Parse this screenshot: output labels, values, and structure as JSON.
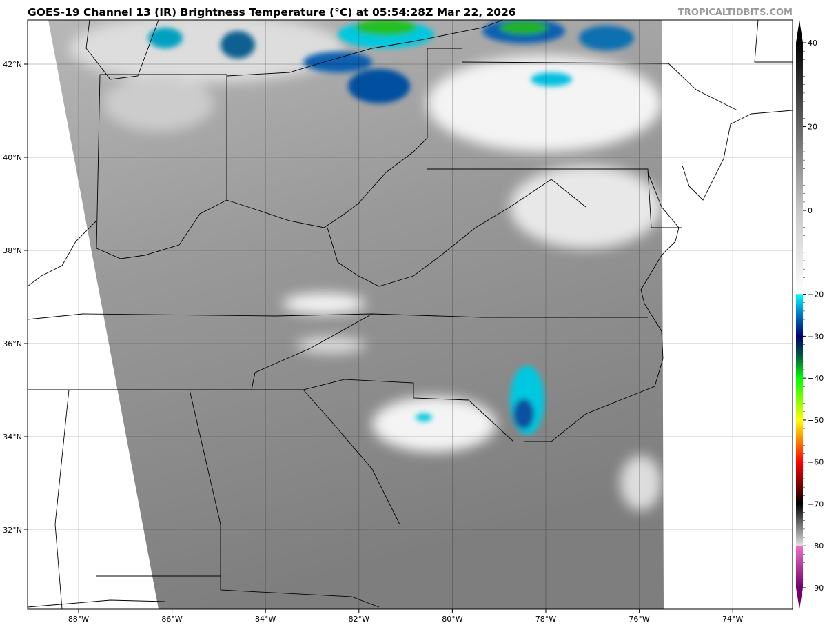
{
  "title": "GOES-19 Channel 13 (IR) Brightness Temperature (°C) at 05:54:28Z Mar 22, 2026",
  "watermark": "TROPICALTIDBITS.COM",
  "map": {
    "lon_labels": [
      "88°W",
      "86°W",
      "84°W",
      "82°W",
      "80°W",
      "78°W",
      "76°W",
      "74°W"
    ],
    "lon_values": [
      -88,
      -86,
      -84,
      -82,
      -80,
      -78,
      -76,
      -74
    ],
    "lat_labels": [
      "42°N",
      "40°N",
      "38°N",
      "36°N",
      "34°N",
      "32°N"
    ],
    "lat_values": [
      42,
      40,
      38,
      36,
      34,
      32
    ],
    "grid": true
  },
  "colorbar": {
    "range": [
      -90,
      40
    ],
    "tick_labels": [
      "40",
      "20",
      "0",
      "−20",
      "−30",
      "−40",
      "−50",
      "−60",
      "−70",
      "−80",
      "−90"
    ],
    "tick_values": [
      40,
      20,
      0,
      -20,
      -30,
      -40,
      -50,
      -60,
      -70,
      -80,
      -90
    ],
    "stops": [
      {
        "v": 40,
        "c": "#000000"
      },
      {
        "v": 0,
        "c": "#c8c8c8"
      },
      {
        "v": -19.9,
        "c": "#ffffff"
      },
      {
        "v": -20,
        "c": "#00ffff"
      },
      {
        "v": -25,
        "c": "#0070c0"
      },
      {
        "v": -30,
        "c": "#000070"
      },
      {
        "v": -35,
        "c": "#006040"
      },
      {
        "v": -40,
        "c": "#00ff00"
      },
      {
        "v": -50,
        "c": "#ffff00"
      },
      {
        "v": -55,
        "c": "#ff8000"
      },
      {
        "v": -60,
        "c": "#ff0000"
      },
      {
        "v": -66,
        "c": "#700000"
      },
      {
        "v": -70,
        "c": "#000000"
      },
      {
        "v": -79.9,
        "c": "#e0e0e0"
      },
      {
        "v": -80,
        "c": "#f070c8"
      },
      {
        "v": -90,
        "c": "#700070"
      }
    ]
  }
}
